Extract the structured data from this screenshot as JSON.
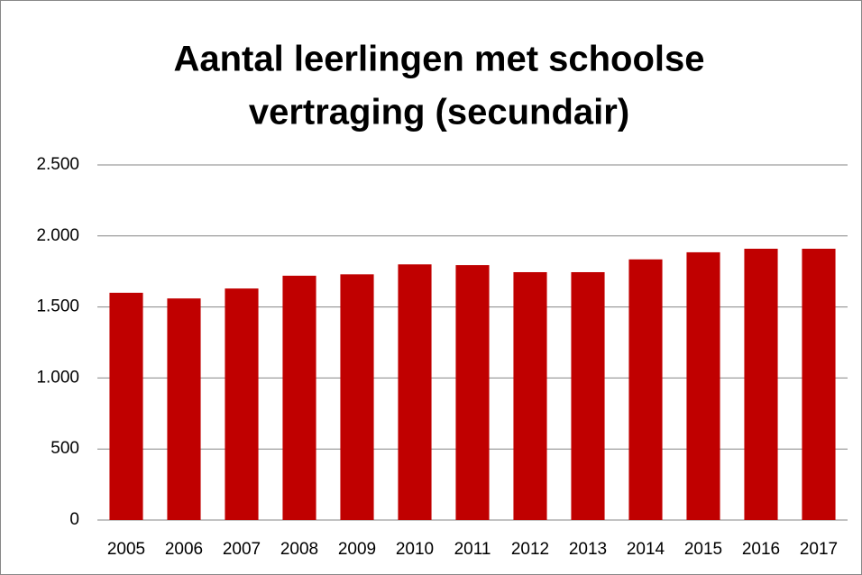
{
  "chart_data": {
    "type": "bar",
    "title": [
      "Aantal leerlingen met schoolse",
      "vertraging (secundair)"
    ],
    "categories": [
      "2005",
      "2006",
      "2007",
      "2008",
      "2009",
      "2010",
      "2011",
      "2012",
      "2013",
      "2014",
      "2015",
      "2016",
      "2017"
    ],
    "values": [
      1600,
      1560,
      1630,
      1720,
      1730,
      1800,
      1795,
      1745,
      1745,
      1835,
      1885,
      1910,
      1910
    ],
    "color": "#c00000",
    "ylim": [
      0,
      2500
    ],
    "yticks": [
      0,
      500,
      {
        "value": 1000,
        "label": "1.000"
      },
      {
        "value": 1500,
        "label": "1.500"
      },
      {
        "value": 2000,
        "label": "2.000"
      },
      {
        "value": 2500,
        "label": "2.500"
      }
    ],
    "grid": true
  }
}
